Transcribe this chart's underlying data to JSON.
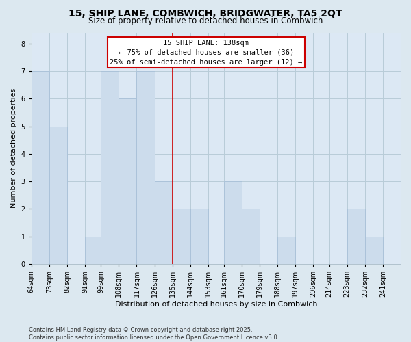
{
  "title": "15, SHIP LANE, COMBWICH, BRIDGWATER, TA5 2QT",
  "subtitle": "Size of property relative to detached houses in Combwich",
  "xlabel": "Distribution of detached houses by size in Combwich",
  "ylabel": "Number of detached properties",
  "footnote1": "Contains HM Land Registry data © Crown copyright and database right 2025.",
  "footnote2": "Contains public sector information licensed under the Open Government Licence v3.0.",
  "bar_edges": [
    64,
    73,
    82,
    91,
    99,
    108,
    117,
    126,
    135,
    144,
    153,
    161,
    170,
    179,
    188,
    197,
    206,
    214,
    223,
    232,
    241
  ],
  "bar_labels": [
    "64sqm",
    "73sqm",
    "82sqm",
    "91sqm",
    "99sqm",
    "108sqm",
    "117sqm",
    "126sqm",
    "135sqm",
    "144sqm",
    "153sqm",
    "161sqm",
    "170sqm",
    "179sqm",
    "188sqm",
    "197sqm",
    "206sqm",
    "214sqm",
    "223sqm",
    "232sqm",
    "241sqm"
  ],
  "bar_heights": [
    7,
    5,
    0,
    1,
    7,
    6,
    7,
    3,
    2,
    2,
    0,
    3,
    2,
    0,
    1,
    0,
    0,
    0,
    2,
    1,
    0
  ],
  "bar_color": "#ccdcec",
  "bar_edgecolor": "#a8c0d8",
  "property_line_x": 135,
  "property_line_color": "#cc0000",
  "annotation_title": "15 SHIP LANE: 138sqm",
  "annotation_line1": "← 75% of detached houses are smaller (36)",
  "annotation_line2": "25% of semi-detached houses are larger (12) →",
  "annotation_box_facecolor": "#ffffff",
  "annotation_box_edgecolor": "#cc0000",
  "ylim": [
    0,
    8.4
  ],
  "yticks": [
    0,
    1,
    2,
    3,
    4,
    5,
    6,
    7,
    8
  ],
  "bg_color": "#dce8f0",
  "plot_bg_color": "#dce8f4",
  "grid_color": "#b8ccd8",
  "title_fontsize": 10,
  "subtitle_fontsize": 8.5,
  "axis_label_fontsize": 8,
  "tick_fontsize": 7,
  "annotation_fontsize": 7.5,
  "footnote_fontsize": 6
}
